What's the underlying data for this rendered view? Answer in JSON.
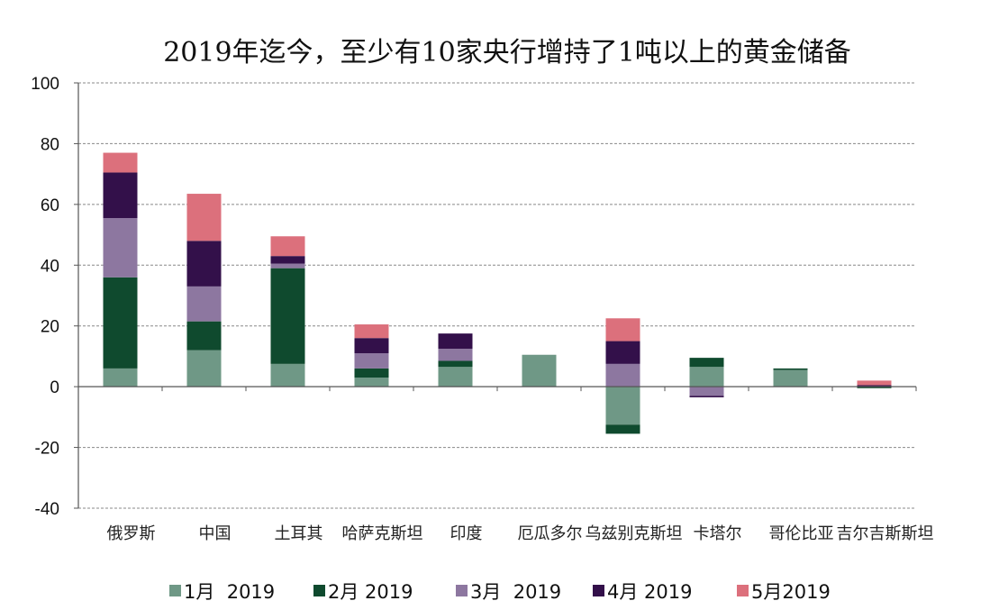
{
  "chart_data": {
    "type": "bar",
    "stacked": true,
    "title": "2019年迄今，至少有10家央行增持了1吨以上的黄金储备",
    "xlabel": "",
    "ylabel": "",
    "ylim": [
      -40,
      100
    ],
    "yticks": [
      -40,
      -20,
      0,
      20,
      40,
      60,
      80,
      100
    ],
    "grid": true,
    "legend_position": "bottom",
    "categories": [
      "俄罗斯",
      "中国",
      "土耳其",
      "哈萨克斯坦",
      "印度",
      "厄瓜多尔",
      "乌兹别克斯坦",
      "卡塔尔",
      "哥伦比亚",
      "吉尔吉斯斯坦"
    ],
    "series": [
      {
        "name": "1月  2019",
        "color": "#6f9886",
        "values": [
          6,
          12,
          7.5,
          3,
          6.5,
          10.5,
          -12.5,
          6.5,
          5.5,
          0
        ]
      },
      {
        "name": "2月 2019",
        "color": "#0f4a2e",
        "values": [
          30,
          9.5,
          31.5,
          3,
          2,
          0,
          -3,
          3,
          0.5,
          -0.5
        ]
      },
      {
        "name": "3月  2019",
        "color": "#8d77a0",
        "values": [
          19.5,
          11.5,
          1.5,
          5,
          4,
          0,
          7.5,
          -3,
          0,
          0
        ]
      },
      {
        "name": "4月 2019",
        "color": "#33104a",
        "values": [
          15,
          15,
          2.5,
          5,
          5,
          0,
          7.5,
          -0.5,
          0,
          0.5
        ]
      },
      {
        "name": "5月2019",
        "color": "#dc707c",
        "values": [
          6.5,
          15.5,
          6.5,
          4.5,
          0,
          0,
          7.5,
          0,
          0,
          1.5
        ]
      }
    ]
  }
}
